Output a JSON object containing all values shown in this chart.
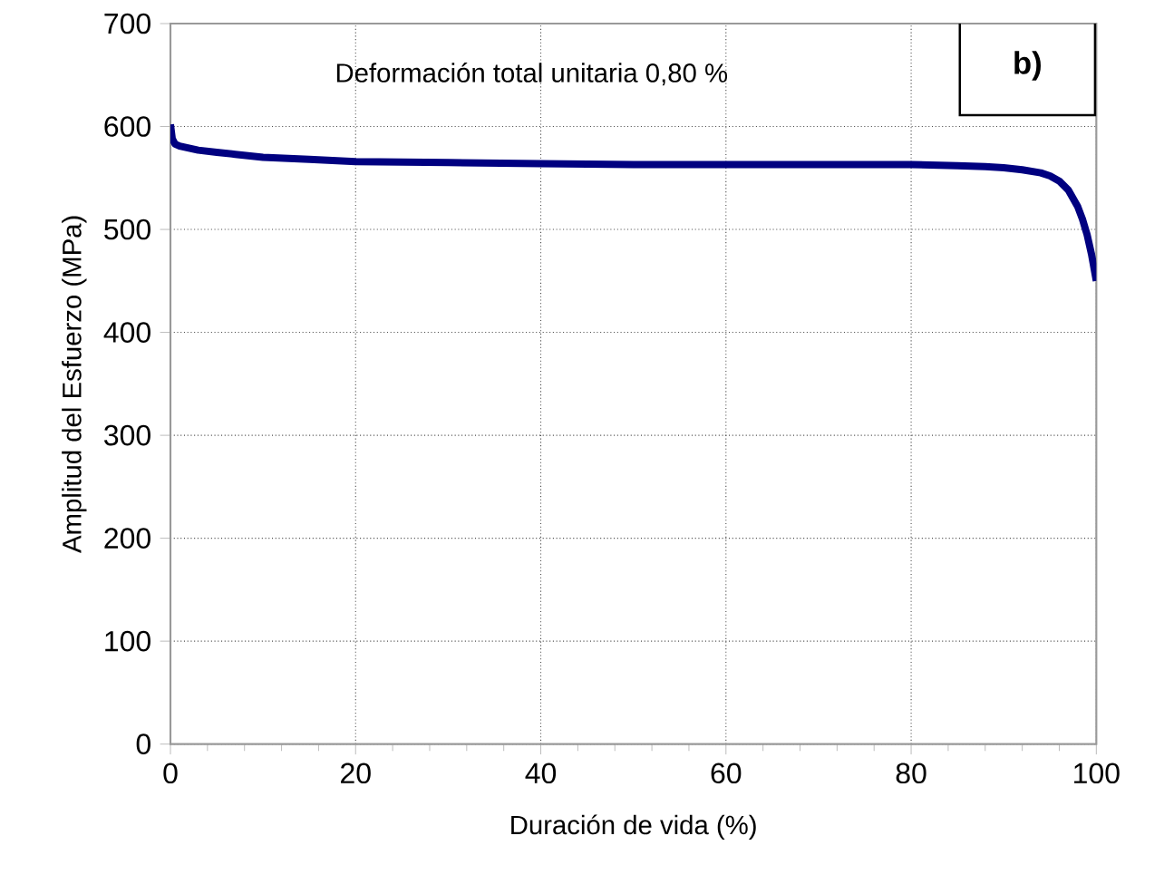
{
  "chart_data": {
    "type": "line",
    "xlabel": "Duración de vida (%)",
    "ylabel": "Amplitud del Esfuerzo (MPa)",
    "annotations": [
      "Deformación total unitaria 0,80 %",
      "b)"
    ],
    "xlim": [
      0,
      100
    ],
    "ylim": [
      0,
      700
    ],
    "xticks": [
      0,
      20,
      40,
      60,
      80,
      100
    ],
    "yticks": [
      0,
      100,
      200,
      300,
      400,
      500,
      600,
      700
    ],
    "grid": true,
    "marker": "none",
    "line_style": "solid",
    "series": [
      {
        "color": "#000080",
        "x": [
          0,
          0.2,
          0.5,
          1,
          2,
          3,
          5,
          7,
          10,
          15,
          20,
          30,
          40,
          50,
          60,
          70,
          80,
          85,
          88,
          90,
          92,
          94,
          95,
          96,
          97,
          98,
          98.5,
          99,
          99.5,
          100
        ],
        "values": [
          602,
          588,
          583,
          581,
          579,
          577,
          575,
          573,
          570,
          568,
          566,
          565,
          564,
          563,
          563,
          563,
          563,
          562,
          561,
          560,
          558,
          555,
          552,
          547,
          538,
          522,
          510,
          495,
          475,
          450
        ]
      }
    ]
  }
}
